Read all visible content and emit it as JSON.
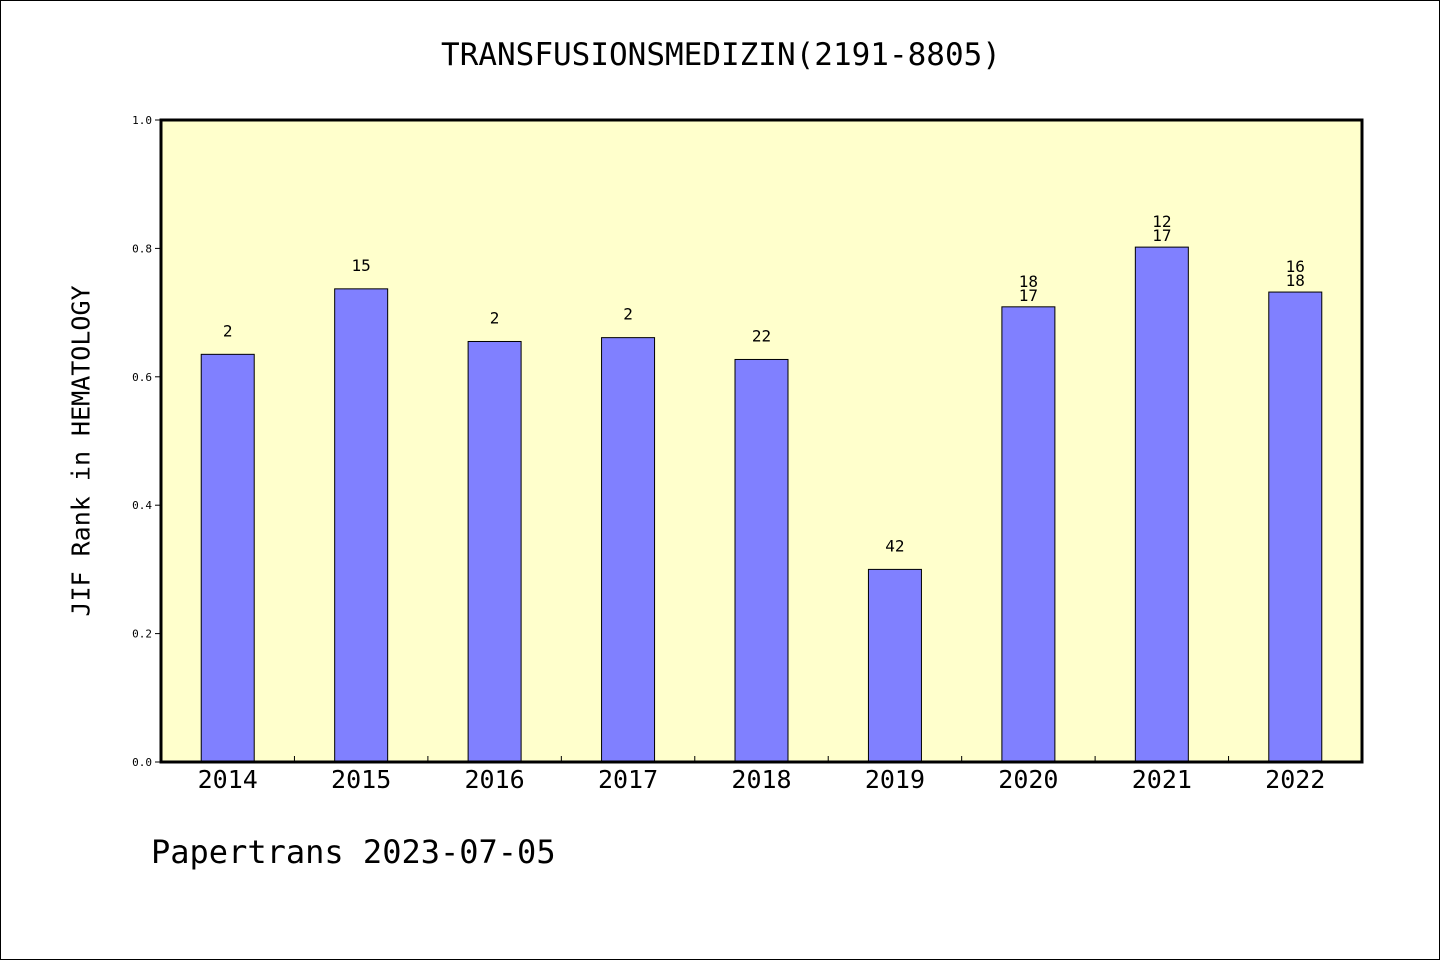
{
  "title": "TRANSFUSIONSMEDIZIN(2191-8805)",
  "footer": "Papertrans 2023-07-05",
  "colors": {
    "plot_bg": "#ffffcc",
    "bar": "#8080ff",
    "bar_edge": "#000000"
  },
  "chart_data": {
    "type": "bar",
    "title": "TRANSFUSIONSMEDIZIN(2191-8805)",
    "xlabel": "",
    "ylabel": "JIF Rank in HEMATOLOGY",
    "ylim": [
      0.0,
      1.0
    ],
    "yticks": [
      "0.0",
      "0.2",
      "0.4",
      "0.6",
      "0.8",
      "1.0"
    ],
    "categories": [
      "2014",
      "2015",
      "2016",
      "2017",
      "2018",
      "2019",
      "2020",
      "2021",
      "2022"
    ],
    "values": [
      0.635,
      0.737,
      0.655,
      0.661,
      0.627,
      0.3,
      0.709,
      0.802,
      0.732
    ],
    "bar_labels": [
      [
        "2"
      ],
      [
        "15"
      ],
      [
        "2"
      ],
      [
        "2"
      ],
      [
        "22"
      ],
      [
        "42"
      ],
      [
        "18",
        "17"
      ],
      [
        "12",
        "17"
      ],
      [
        "16",
        "18"
      ]
    ],
    "grid": false,
    "legend": "none"
  }
}
